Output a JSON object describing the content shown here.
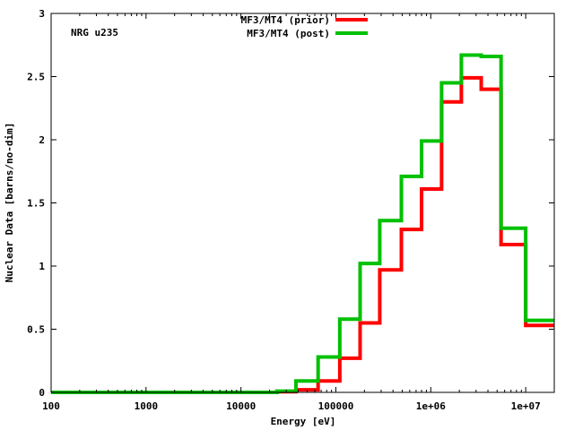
{
  "chart_data": {
    "type": "line",
    "step": true,
    "x_scale": "log",
    "annotation": "NRG u235",
    "xlabel": "Energy [eV]",
    "ylabel": "Nuclear Data [barns/no-dim]",
    "xlim": [
      100,
      20000000
    ],
    "ylim": [
      0,
      3
    ],
    "x_ticks": [
      {
        "value": 100,
        "label": "100"
      },
      {
        "value": 1000,
        "label": "1000"
      },
      {
        "value": 10000,
        "label": "10000"
      },
      {
        "value": 100000,
        "label": "100000"
      },
      {
        "value": 1000000,
        "label": "1e+06"
      },
      {
        "value": 10000000,
        "label": "1e+07"
      }
    ],
    "y_ticks": [
      {
        "value": 0,
        "label": "0"
      },
      {
        "value": 0.5,
        "label": "0.5"
      },
      {
        "value": 1,
        "label": "1"
      },
      {
        "value": 1.5,
        "label": "1.5"
      },
      {
        "value": 2,
        "label": "2"
      },
      {
        "value": 2.5,
        "label": "2.5"
      },
      {
        "value": 3,
        "label": "3"
      }
    ],
    "bin_edges": [
      100,
      24000,
      38000,
      65000,
      110000,
      180000,
      290000,
      490000,
      800000,
      1300000,
      2100000,
      3400000,
      5500000,
      10000000,
      20000000
    ],
    "series": [
      {
        "name": "MF3/MT4 (prior)",
        "color": "#ff0000",
        "values": [
          0.0,
          0.005,
          0.02,
          0.09,
          0.27,
          0.55,
          0.97,
          1.29,
          1.61,
          2.3,
          2.49,
          2.4,
          1.17,
          0.53
        ]
      },
      {
        "name": "MF3/MT4 (post)",
        "color": "#00c000",
        "values": [
          0.0,
          0.01,
          0.09,
          0.28,
          0.58,
          1.02,
          1.36,
          1.71,
          1.99,
          2.45,
          2.67,
          2.66,
          1.3,
          0.57
        ]
      }
    ],
    "legend_position": "top-center",
    "grid": false
  }
}
